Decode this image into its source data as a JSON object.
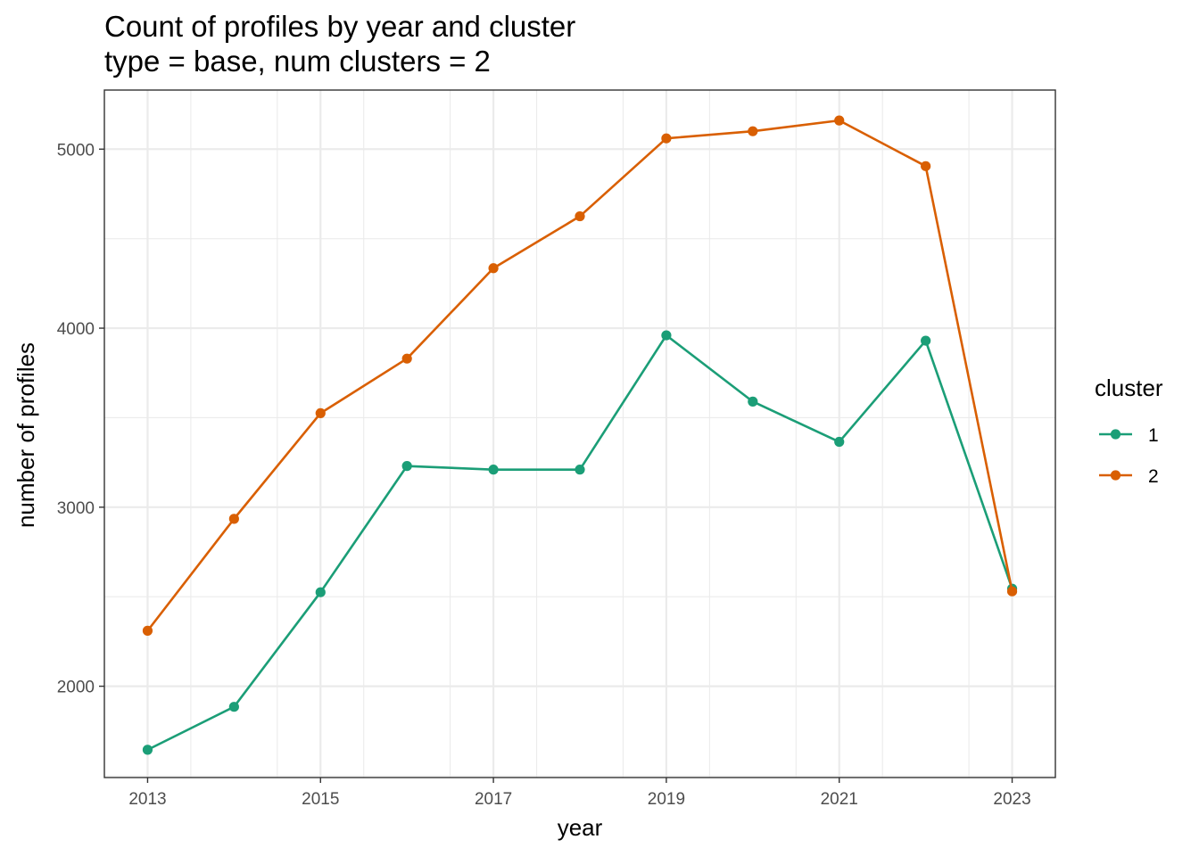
{
  "chart_data": {
    "type": "line",
    "title": "Count of profiles by year and cluster",
    "subtitle": "type = base, num clusters = 2",
    "xlabel": "year",
    "ylabel": "number of profiles",
    "xlim": [
      2012.5,
      2023.5
    ],
    "ylim": [
      1490,
      5330
    ],
    "x_ticks": [
      2013,
      2015,
      2017,
      2019,
      2021,
      2023
    ],
    "x_tick_labels": [
      "2013",
      "2015",
      "2017",
      "2019",
      "2021",
      "2023"
    ],
    "y_ticks": [
      2000,
      3000,
      4000,
      5000
    ],
    "y_tick_labels": [
      "2000",
      "3000",
      "4000",
      "5000"
    ],
    "grid": true,
    "legend": {
      "title": "cluster",
      "position": "right"
    },
    "x": [
      2013,
      2014,
      2015,
      2016,
      2017,
      2018,
      2019,
      2020,
      2021,
      2022,
      2023
    ],
    "series": [
      {
        "name": "1",
        "color": "#1b9e77",
        "values": [
          1645,
          1885,
          2525,
          3230,
          3210,
          3210,
          3960,
          3590,
          3365,
          3930,
          2545
        ]
      },
      {
        "name": "2",
        "color": "#d95f02",
        "values": [
          2310,
          2935,
          3525,
          3830,
          4335,
          4625,
          5060,
          5100,
          5160,
          4905,
          2530
        ]
      }
    ]
  }
}
